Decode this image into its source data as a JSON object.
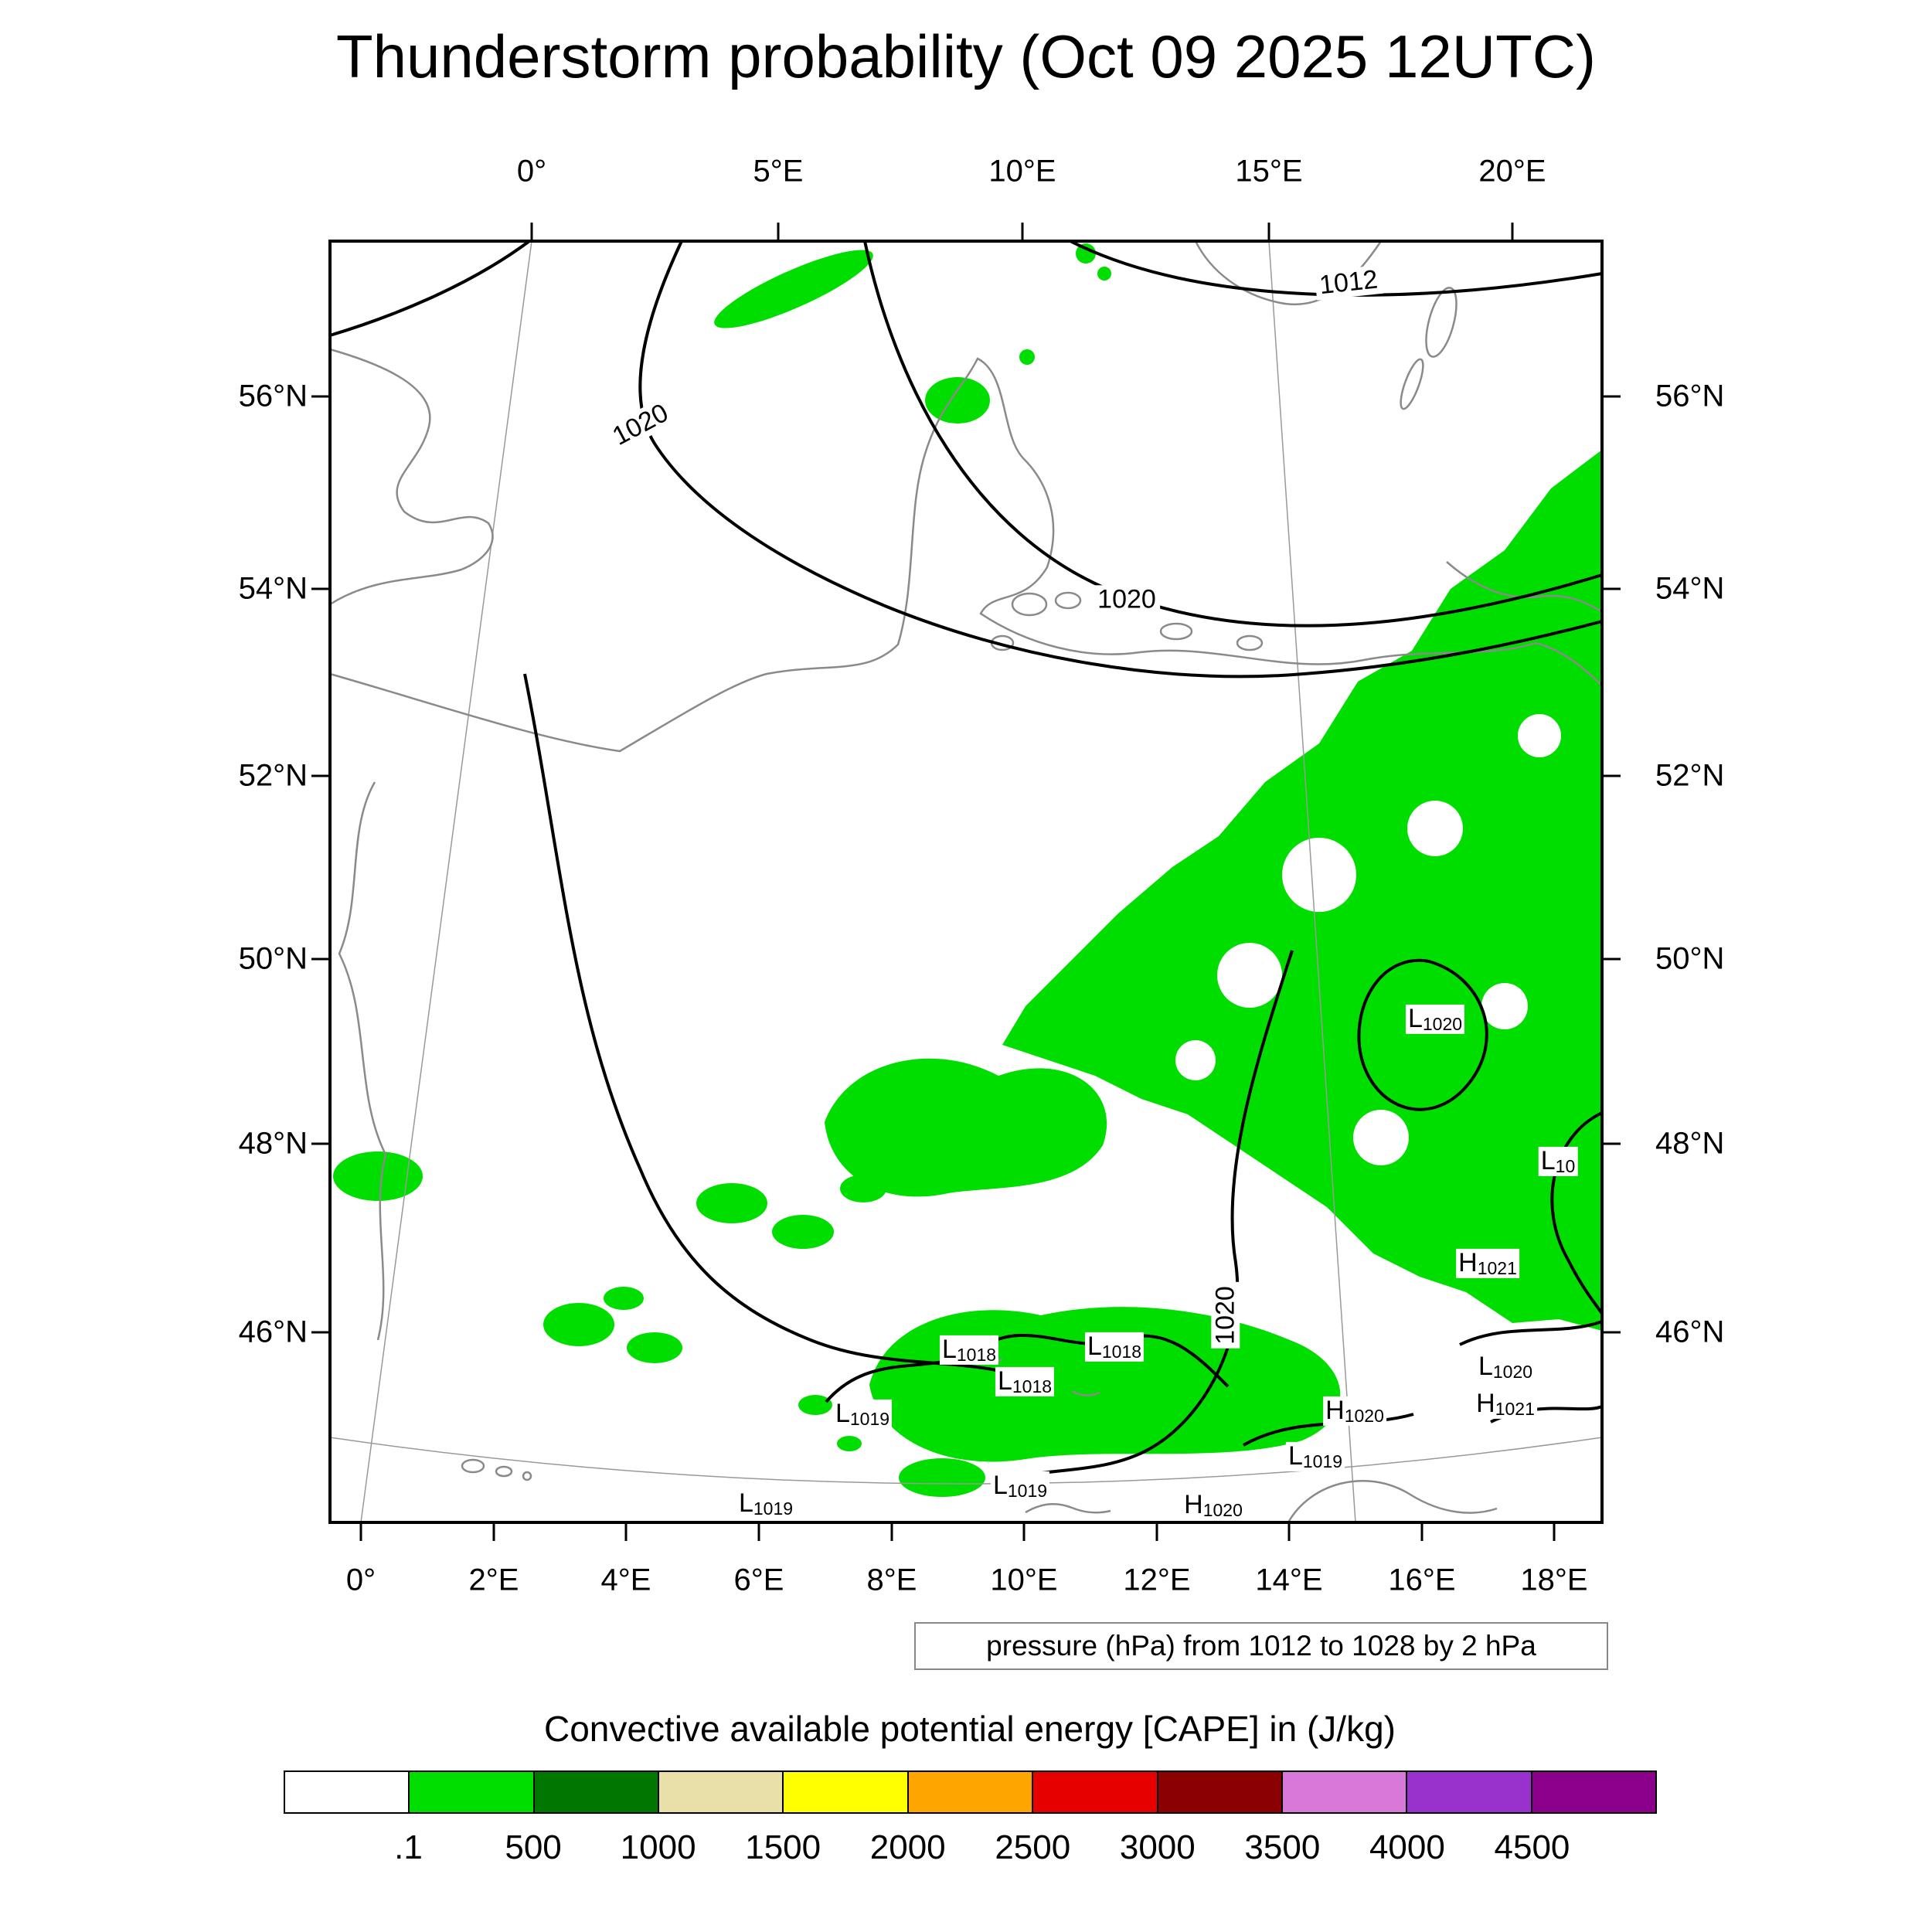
{
  "title": "Thunderstorm probability (Oct 09 2025 12UTC)",
  "map": {
    "axis_top": [
      "0°",
      "5°E",
      "10°E",
      "15°E",
      "20°E"
    ],
    "axis_bottom": [
      "0°",
      "2°E",
      "4°E",
      "6°E",
      "8°E",
      "10°E",
      "12°E",
      "14°E",
      "16°E",
      "18°E"
    ],
    "axis_left": [
      "56°N",
      "54°N",
      "52°N",
      "50°N",
      "48°N",
      "46°N"
    ],
    "axis_right": [
      "56°N",
      "54°N",
      "52°N",
      "50°N",
      "48°N",
      "46°N"
    ],
    "contour_labels": [
      "1012",
      "1020",
      "1020",
      "1020"
    ],
    "pressure_centers": [
      {
        "letter": "L",
        "value": "1020"
      },
      {
        "letter": "L",
        "value": "10"
      },
      {
        "letter": "H",
        "value": "1021"
      },
      {
        "letter": "L",
        "value": "1018"
      },
      {
        "letter": "L",
        "value": "1018"
      },
      {
        "letter": "L",
        "value": "1018"
      },
      {
        "letter": "L",
        "value": "1019"
      },
      {
        "letter": "H",
        "value": "1020"
      },
      {
        "letter": "L",
        "value": "1020"
      },
      {
        "letter": "H",
        "value": "1021"
      },
      {
        "letter": "L",
        "value": "1019"
      },
      {
        "letter": "L",
        "value": "1019"
      },
      {
        "letter": "L",
        "value": "1019"
      },
      {
        "letter": "H",
        "value": "1020"
      }
    ]
  },
  "caption": "pressure (hPa) from 1012 to 1028 by 2 hPa",
  "legend": {
    "title": "Convective available potential energy [CAPE] in (J/kg)",
    "ticks": [
      ".1",
      "500",
      "1000",
      "1500",
      "2000",
      "2500",
      "3000",
      "3500",
      "4000",
      "4500"
    ],
    "colors": [
      "#ffffff",
      "#00de00",
      "#007700",
      "#e8e0a8",
      "#ffff00",
      "#ffa500",
      "#e60000",
      "#8b0000",
      "#d878d8",
      "#9932cc",
      "#8b008b"
    ]
  },
  "chart_data": {
    "type": "map",
    "extent": {
      "lon_ticks_deg_e": [
        0,
        2,
        4,
        6,
        8,
        10,
        12,
        14,
        16,
        18,
        20
      ],
      "lat_ticks_deg_n": [
        46,
        48,
        50,
        52,
        54,
        56
      ]
    },
    "contour_field": {
      "name": "pressure",
      "units": "hPa",
      "min": 1012,
      "max": 1028,
      "interval": 2,
      "labeled_isobars": [
        1012,
        1020,
        1020,
        1020
      ]
    },
    "shaded_field": {
      "name": "CAPE",
      "units": "J/kg",
      "levels": [
        0.1,
        500,
        1000,
        1500,
        2000,
        2500,
        3000,
        3500,
        4000,
        4500
      ],
      "visible_shading": "0.1-500 J/kg (green) over eastern Germany, Poland, Czechia, Austria and the Alpine region, with scattered patches over France and the far northwest"
    }
  }
}
